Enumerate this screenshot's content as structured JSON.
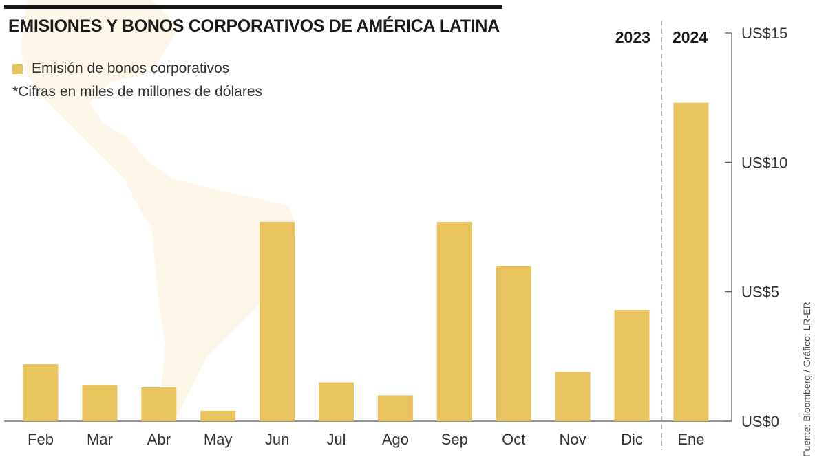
{
  "header": {
    "title": "EMISIONES Y BONOS CORPORATIVOS DE AMÉRICA LATINA",
    "legend_label": "Emisión de bonos corporativos",
    "note": "*Cifras en miles de millones de dólares",
    "source": "Fuente: Bloomberg / Gráfico: LR-ER"
  },
  "colors": {
    "bar": "#E9C35E",
    "axis": "#555555",
    "divider": "#888888",
    "map": "#FDF7EA"
  },
  "chart_data": {
    "type": "bar",
    "title": "EMISIONES Y BONOS CORPORATIVOS DE AMÉRICA LATINA",
    "xlabel": "",
    "ylabel": "",
    "categories": [
      "Feb",
      "Mar",
      "Abr",
      "May",
      "Jun",
      "Jul",
      "Ago",
      "Sep",
      "Oct",
      "Nov",
      "Dic",
      "Ene"
    ],
    "series": [
      {
        "name": "Emisión de bonos corporativos",
        "values": [
          2.2,
          1.4,
          1.3,
          0.4,
          7.7,
          1.5,
          1.0,
          7.7,
          6.0,
          1.9,
          4.3,
          12.3
        ]
      }
    ],
    "ylim": [
      0,
      15
    ],
    "yticks": [
      0,
      5,
      10,
      15
    ],
    "ytick_labels": [
      "US$0",
      "US$5",
      "US$10",
      "US$15"
    ],
    "year_groups": [
      {
        "label": "2023",
        "first": 0,
        "last": 10
      },
      {
        "label": "2024",
        "first": 11,
        "last": 11
      }
    ],
    "y_axis_side": "right",
    "grid": false,
    "legend_position": "top-left"
  }
}
